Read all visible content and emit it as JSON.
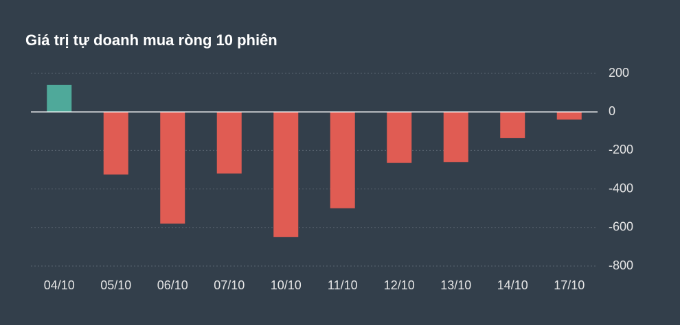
{
  "chart_data": {
    "type": "bar",
    "title": "Giá trị tự doanh mua ròng 10 phiên",
    "categories": [
      "04/10",
      "05/10",
      "06/10",
      "07/10",
      "10/10",
      "11/10",
      "12/10",
      "13/10",
      "14/10",
      "17/10"
    ],
    "values": [
      140,
      -325,
      -580,
      -320,
      -650,
      -500,
      -265,
      -260,
      -135,
      -40
    ],
    "positive_color": "#4fa99a",
    "negative_color": "#e05c53",
    "ylim": [
      -800,
      200
    ],
    "yticks": [
      200,
      0,
      -200,
      -400,
      -600,
      -800
    ],
    "grid": true,
    "y_axis_side": "right"
  }
}
